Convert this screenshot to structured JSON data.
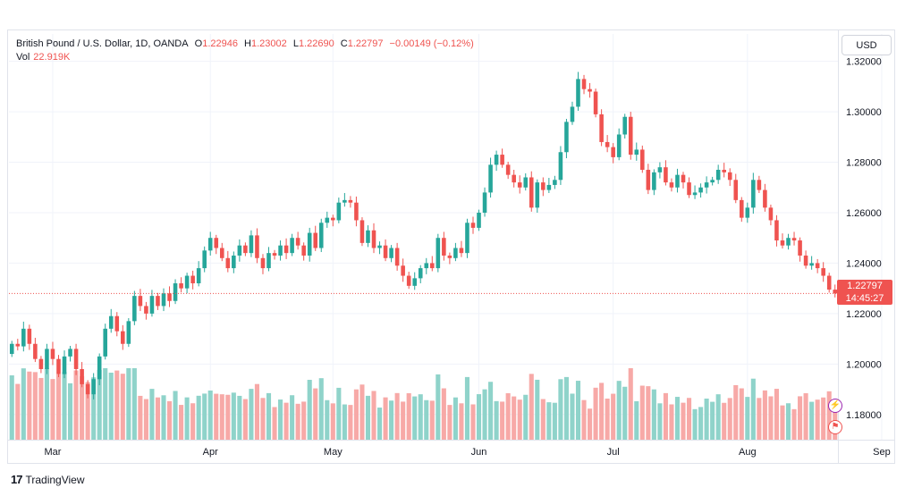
{
  "header": {
    "symbol": "British Pound / U.S. Dollar, 1D, OANDA",
    "open_key": "O",
    "open": "1.22946",
    "high_key": "H",
    "high": "1.23002",
    "low_key": "L",
    "low": "1.22690",
    "close_key": "C",
    "close": "1.22797",
    "change": "−0.00149 (−0.12%)",
    "vol_key": "Vol",
    "vol": "22.919K"
  },
  "currency_button": "USD",
  "price_tag": {
    "price": "1.22797",
    "countdown": "14:45:27"
  },
  "footer": {
    "brand": "TradingView",
    "logo": "tv-logo"
  },
  "icons": {
    "events": "lightning-icon",
    "dividends": "flag-icon"
  },
  "colors": {
    "up": "#26a69a",
    "down": "#ef5350",
    "vol_up": "#8fd3ca",
    "vol_down": "#f7a9a7"
  },
  "chart_data": {
    "type": "candlestick",
    "title": "British Pound / U.S. Dollar, 1D, OANDA",
    "ylim": [
      1.17,
      1.322
    ],
    "y_ticks": [
      "1.18000",
      "1.20000",
      "1.22000",
      "1.24000",
      "1.26000",
      "1.28000",
      "1.30000",
      "1.32000"
    ],
    "x_ticks": [
      {
        "label": "Mar",
        "index": 7
      },
      {
        "label": "Apr",
        "index": 34
      },
      {
        "label": "May",
        "index": 55
      },
      {
        "label": "Jun",
        "index": 80
      },
      {
        "label": "Jul",
        "index": 103
      },
      {
        "label": "Aug",
        "index": 126
      },
      {
        "label": "Sep",
        "index": 149
      }
    ],
    "current_price": 1.22797,
    "candles": [
      [
        1.204,
        1.208
      ],
      [
        1.208,
        1.207
      ],
      [
        1.207,
        1.214
      ],
      [
        1.214,
        1.208
      ],
      [
        1.208,
        1.202
      ],
      [
        1.202,
        1.198
      ],
      [
        1.198,
        1.206
      ],
      [
        1.206,
        1.202
      ],
      [
        1.202,
        1.196
      ],
      [
        1.196,
        1.203
      ],
      [
        1.203,
        1.206
      ],
      [
        1.206,
        1.198
      ],
      [
        1.198,
        1.192
      ],
      [
        1.192,
        1.188
      ],
      [
        1.188,
        1.194
      ],
      [
        1.194,
        1.203
      ],
      [
        1.203,
        1.214
      ],
      [
        1.214,
        1.219
      ],
      [
        1.219,
        1.213
      ],
      [
        1.213,
        1.208
      ],
      [
        1.208,
        1.217
      ],
      [
        1.217,
        1.227
      ],
      [
        1.227,
        1.223
      ],
      [
        1.223,
        1.22
      ],
      [
        1.22,
        1.227
      ],
      [
        1.227,
        1.223
      ],
      [
        1.223,
        1.228
      ],
      [
        1.228,
        1.225
      ],
      [
        1.225,
        1.232
      ],
      [
        1.232,
        1.23
      ],
      [
        1.23,
        1.235
      ],
      [
        1.235,
        1.232
      ],
      [
        1.232,
        1.238
      ],
      [
        1.238,
        1.245
      ],
      [
        1.245,
        1.25
      ],
      [
        1.25,
        1.246
      ],
      [
        1.246,
        1.242
      ],
      [
        1.242,
        1.238
      ],
      [
        1.238,
        1.243
      ],
      [
        1.243,
        1.247
      ],
      [
        1.247,
        1.244
      ],
      [
        1.244,
        1.251
      ],
      [
        1.251,
        1.242
      ],
      [
        1.242,
        1.238
      ],
      [
        1.238,
        1.244
      ],
      [
        1.244,
        1.243
      ],
      [
        1.243,
        1.247
      ],
      [
        1.247,
        1.244
      ],
      [
        1.244,
        1.25
      ],
      [
        1.25,
        1.247
      ],
      [
        1.247,
        1.243
      ],
      [
        1.243,
        1.252
      ],
      [
        1.252,
        1.246
      ],
      [
        1.246,
        1.256
      ],
      [
        1.256,
        1.258
      ],
      [
        1.258,
        1.257
      ],
      [
        1.257,
        1.264
      ],
      [
        1.264,
        1.265
      ],
      [
        1.265,
        1.264
      ],
      [
        1.264,
        1.257
      ],
      [
        1.257,
        1.248
      ],
      [
        1.248,
        1.253
      ],
      [
        1.253,
        1.246
      ],
      [
        1.246,
        1.247
      ],
      [
        1.247,
        1.242
      ],
      [
        1.242,
        1.246
      ],
      [
        1.246,
        1.239
      ],
      [
        1.239,
        1.235
      ],
      [
        1.235,
        1.231
      ],
      [
        1.231,
        1.234
      ],
      [
        1.234,
        1.238
      ],
      [
        1.238,
        1.24
      ],
      [
        1.24,
        1.238
      ],
      [
        1.238,
        1.25
      ],
      [
        1.25,
        1.243
      ],
      [
        1.243,
        1.242
      ],
      [
        1.242,
        1.246
      ],
      [
        1.246,
        1.244
      ],
      [
        1.244,
        1.256
      ],
      [
        1.256,
        1.254
      ],
      [
        1.254,
        1.26
      ],
      [
        1.26,
        1.268
      ],
      [
        1.268,
        1.279
      ],
      [
        1.279,
        1.283
      ],
      [
        1.283,
        1.279
      ],
      [
        1.279,
        1.275
      ],
      [
        1.275,
        1.272
      ],
      [
        1.272,
        1.27
      ],
      [
        1.27,
        1.274
      ],
      [
        1.274,
        1.262
      ],
      [
        1.262,
        1.272
      ],
      [
        1.272,
        1.269
      ],
      [
        1.269,
        1.271
      ],
      [
        1.271,
        1.273
      ],
      [
        1.273,
        1.284
      ],
      [
        1.284,
        1.296
      ],
      [
        1.296,
        1.302
      ],
      [
        1.302,
        1.313
      ],
      [
        1.313,
        1.309
      ],
      [
        1.309,
        1.308
      ],
      [
        1.308,
        1.299
      ],
      [
        1.299,
        1.288
      ],
      [
        1.288,
        1.286
      ],
      [
        1.286,
        1.282
      ],
      [
        1.282,
        1.291
      ],
      [
        1.291,
        1.298
      ],
      [
        1.298,
        1.283
      ],
      [
        1.283,
        1.285
      ],
      [
        1.285,
        1.277
      ],
      [
        1.277,
        1.269
      ],
      [
        1.269,
        1.276
      ],
      [
        1.276,
        1.278
      ],
      [
        1.278,
        1.272
      ],
      [
        1.272,
        1.27
      ],
      [
        1.27,
        1.275
      ],
      [
        1.275,
        1.272
      ],
      [
        1.272,
        1.267
      ],
      [
        1.267,
        1.268
      ],
      [
        1.268,
        1.27
      ],
      [
        1.27,
        1.272
      ],
      [
        1.272,
        1.273
      ],
      [
        1.273,
        1.277
      ],
      [
        1.277,
        1.276
      ],
      [
        1.276,
        1.273
      ],
      [
        1.273,
        1.265
      ],
      [
        1.265,
        1.258
      ],
      [
        1.258,
        1.262
      ],
      [
        1.262,
        1.273
      ],
      [
        1.273,
        1.269
      ],
      [
        1.269,
        1.262
      ],
      [
        1.262,
        1.257
      ],
      [
        1.257,
        1.249
      ],
      [
        1.249,
        1.247
      ],
      [
        1.247,
        1.25
      ],
      [
        1.25,
        1.249
      ],
      [
        1.249,
        1.243
      ],
      [
        1.243,
        1.239
      ],
      [
        1.239,
        1.24
      ],
      [
        1.24,
        1.238
      ],
      [
        1.238,
        1.235
      ],
      [
        1.235,
        1.2295
      ],
      [
        1.2295,
        1.228
      ]
    ],
    "volume_shading": "relative (no axis printed)"
  }
}
